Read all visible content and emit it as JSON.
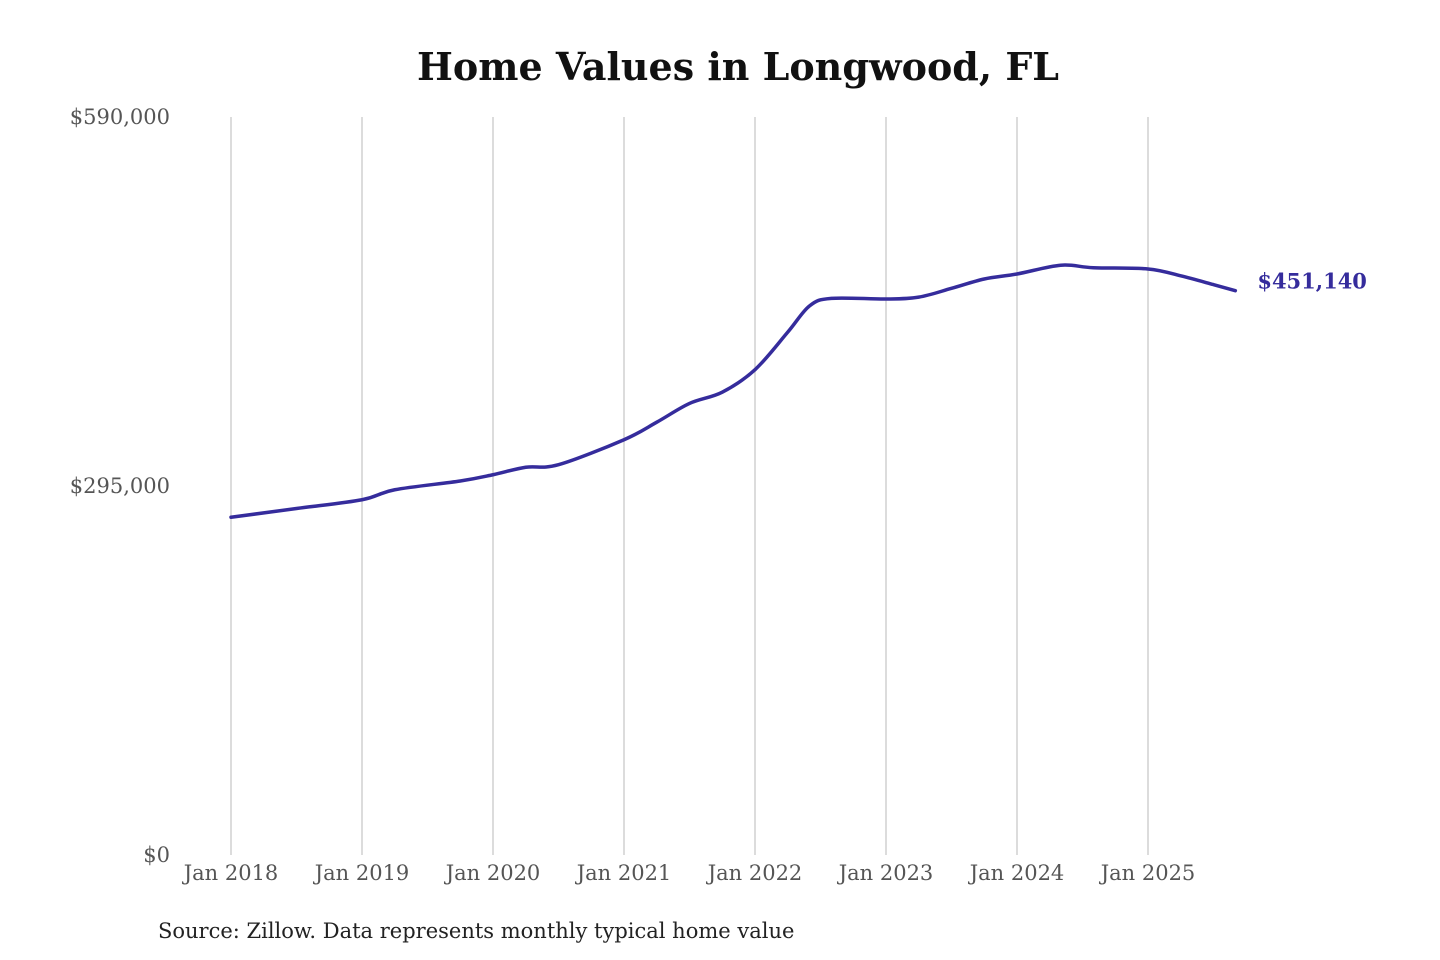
{
  "chart_data": {
    "type": "line",
    "title": "Home Values in Longwood, FL",
    "xlabel": "",
    "ylabel": "",
    "ylim": [
      0,
      590000
    ],
    "y_ticks": [
      {
        "value": 0,
        "label": "$0"
      },
      {
        "value": 295000,
        "label": "$295,000"
      },
      {
        "value": 590000,
        "label": "$590,000"
      }
    ],
    "x_ticks": [
      {
        "value": "2018-01",
        "label": "Jan 2018"
      },
      {
        "value": "2019-01",
        "label": "Jan 2019"
      },
      {
        "value": "2020-01",
        "label": "Jan 2020"
      },
      {
        "value": "2021-01",
        "label": "Jan 2021"
      },
      {
        "value": "2022-01",
        "label": "Jan 2022"
      },
      {
        "value": "2023-01",
        "label": "Jan 2023"
      },
      {
        "value": "2024-01",
        "label": "Jan 2024"
      },
      {
        "value": "2025-01",
        "label": "Jan 2025"
      }
    ],
    "grid": "vertical",
    "line_color": "#352c9c",
    "end_label": "$451,140",
    "series": [
      {
        "points": [
          [
            "2018-01",
            270000
          ],
          [
            "2018-07",
            277000
          ],
          [
            "2019-01",
            284000
          ],
          [
            "2019-04",
            292000
          ],
          [
            "2019-10",
            299000
          ],
          [
            "2020-01",
            304000
          ],
          [
            "2020-04",
            310000
          ],
          [
            "2020-07",
            312000
          ],
          [
            "2021-01",
            332000
          ],
          [
            "2021-04",
            346000
          ],
          [
            "2021-07",
            361000
          ],
          [
            "2021-10",
            370000
          ],
          [
            "2022-01",
            388000
          ],
          [
            "2022-04",
            418000
          ],
          [
            "2022-06",
            439000
          ],
          [
            "2022-08",
            445000
          ],
          [
            "2023-01",
            444500
          ],
          [
            "2023-04",
            446000
          ],
          [
            "2023-07",
            453000
          ],
          [
            "2023-10",
            460500
          ],
          [
            "2024-01",
            464500
          ],
          [
            "2024-05",
            471500
          ],
          [
            "2024-08",
            469500
          ],
          [
            "2025-01",
            468500
          ],
          [
            "2025-04",
            463000
          ],
          [
            "2025-07",
            456000
          ],
          [
            "2025-09",
            451140
          ]
        ]
      }
    ],
    "source_note": "Source: Zillow. Data represents monthly typical home value"
  }
}
